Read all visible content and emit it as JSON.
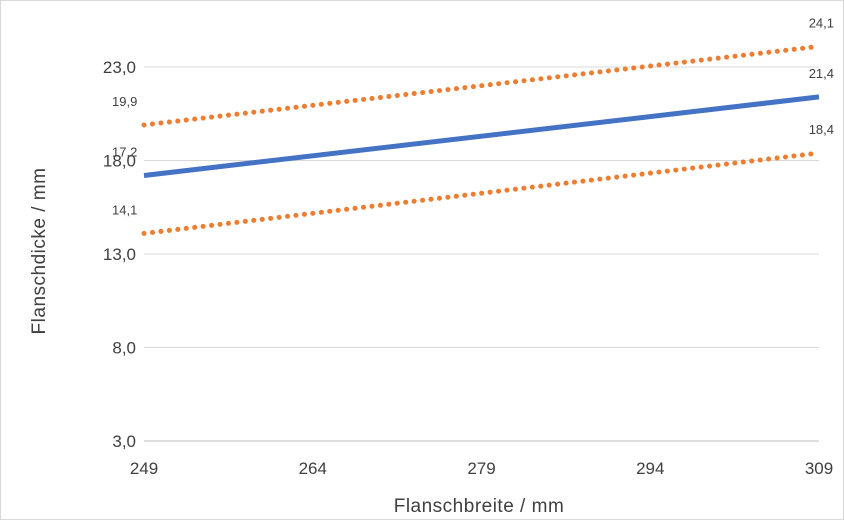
{
  "chart_data": {
    "type": "line",
    "xlabel": "Flanschbreite / mm",
    "ylabel": "Flanschdicke / mm",
    "xlim": [
      249,
      309
    ],
    "ylim": [
      3,
      25
    ],
    "x_ticks": [
      "249",
      "264",
      "279",
      "294",
      "309"
    ],
    "y_ticks": [
      "3,0",
      "8,0",
      "13,0",
      "18,0",
      "23,0"
    ],
    "grid": "horizontal",
    "legend": "none",
    "series": [
      {
        "values": [
          [
            249,
            19.9
          ],
          [
            309,
            24.1
          ]
        ],
        "labels": [
          "19,9",
          "24,1"
        ],
        "style": "dotted",
        "color": "#ed7d31"
      },
      {
        "values": [
          [
            249,
            17.2
          ],
          [
            309,
            21.4
          ]
        ],
        "labels": [
          "17,2",
          "21,4"
        ],
        "style": "solid",
        "color": "#4472c4"
      },
      {
        "values": [
          [
            249,
            14.1
          ],
          [
            309,
            18.4
          ]
        ],
        "labels": [
          "14,1",
          "18,4"
        ],
        "style": "dotted",
        "color": "#ed7d31"
      }
    ]
  }
}
